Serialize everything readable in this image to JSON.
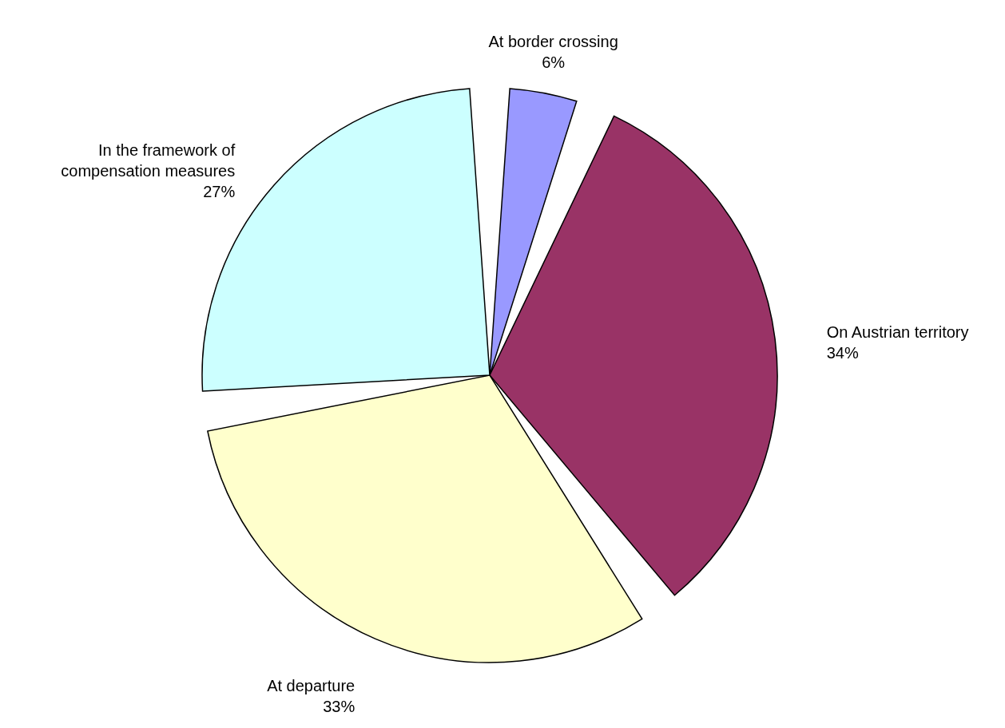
{
  "chart_data": {
    "type": "pie",
    "categories": [
      "At border crossing",
      "On Austrian territory",
      "At departure",
      "In the framework of compensation measures"
    ],
    "values": [
      6,
      34,
      33,
      27
    ],
    "value_labels": [
      "6%",
      "34%",
      "33%",
      "27%"
    ],
    "colors": [
      "#9999ff",
      "#993366",
      "#ffffcc",
      "#ccffff"
    ],
    "legend": false
  }
}
